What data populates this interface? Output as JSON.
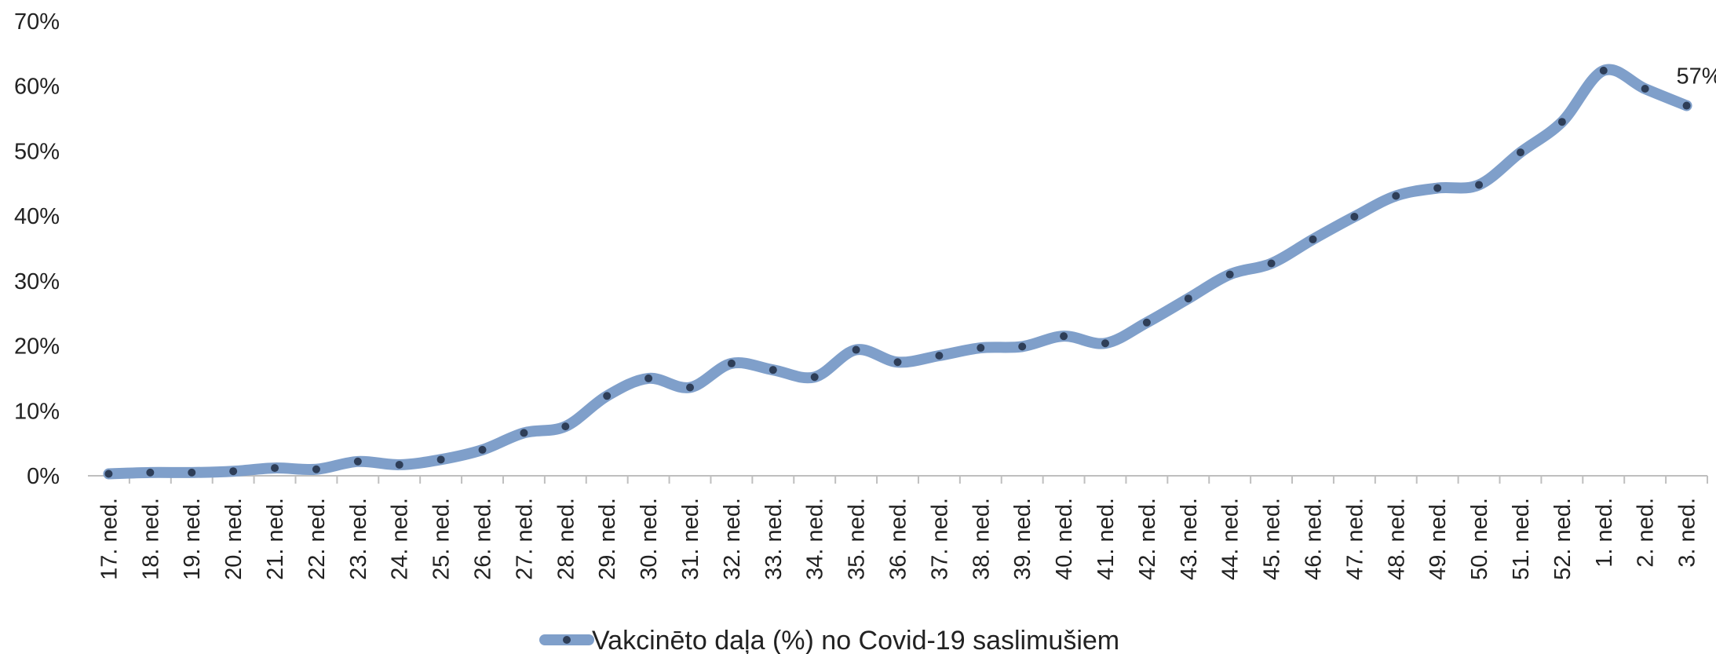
{
  "chart_data": {
    "type": "line",
    "categories": [
      "17. ned.",
      "18. ned.",
      "19. ned.",
      "20. ned.",
      "21. ned.",
      "22. ned.",
      "23. ned.",
      "24. ned.",
      "25. ned.",
      "26. ned.",
      "27. ned.",
      "28. ned.",
      "29. ned.",
      "30. ned.",
      "31. ned.",
      "32. ned.",
      "33. ned.",
      "34. ned.",
      "35. ned.",
      "36. ned.",
      "37. ned.",
      "38. ned.",
      "39. ned.",
      "40. ned.",
      "41. ned.",
      "42. ned.",
      "43. ned.",
      "44. ned.",
      "45. ned.",
      "46. ned.",
      "47. ned.",
      "48. ned.",
      "49. ned.",
      "50. ned.",
      "51. ned.",
      "52. ned.",
      "1. ned.",
      "2. ned.",
      "3. ned."
    ],
    "series": [
      {
        "name": "Vakcinēto daļa (%) no Covid-19 saslimušiem",
        "color": "#7f9fca",
        "marker_color": "#2e3e58",
        "values": [
          0.3,
          0.5,
          0.5,
          0.7,
          1.2,
          1.0,
          2.2,
          1.7,
          2.5,
          4.0,
          6.6,
          7.6,
          12.3,
          15.0,
          13.6,
          17.3,
          16.3,
          15.2,
          19.4,
          17.5,
          18.5,
          19.7,
          19.9,
          21.5,
          20.4,
          23.6,
          27.3,
          31.0,
          32.7,
          36.4,
          39.9,
          43.1,
          44.3,
          44.8,
          49.8,
          54.5,
          62.4,
          59.6,
          57
        ],
        "value_labels": [
          null,
          null,
          null,
          null,
          null,
          null,
          null,
          null,
          null,
          null,
          null,
          null,
          null,
          null,
          null,
          null,
          null,
          null,
          null,
          null,
          null,
          null,
          null,
          null,
          null,
          null,
          null,
          null,
          null,
          null,
          null,
          null,
          null,
          null,
          null,
          null,
          null,
          null,
          "57%"
        ]
      }
    ],
    "ylim": [
      0,
      70
    ],
    "yticks": [
      {
        "value": 0,
        "label": "0%"
      },
      {
        "value": 10,
        "label": "10%"
      },
      {
        "value": 20,
        "label": "20%"
      },
      {
        "value": 30,
        "label": "30%"
      },
      {
        "value": 40,
        "label": "40%"
      },
      {
        "value": 50,
        "label": "50%"
      },
      {
        "value": 60,
        "label": "60%"
      },
      {
        "value": 70,
        "label": "70%"
      }
    ],
    "grid": false,
    "legend": "bottom"
  }
}
